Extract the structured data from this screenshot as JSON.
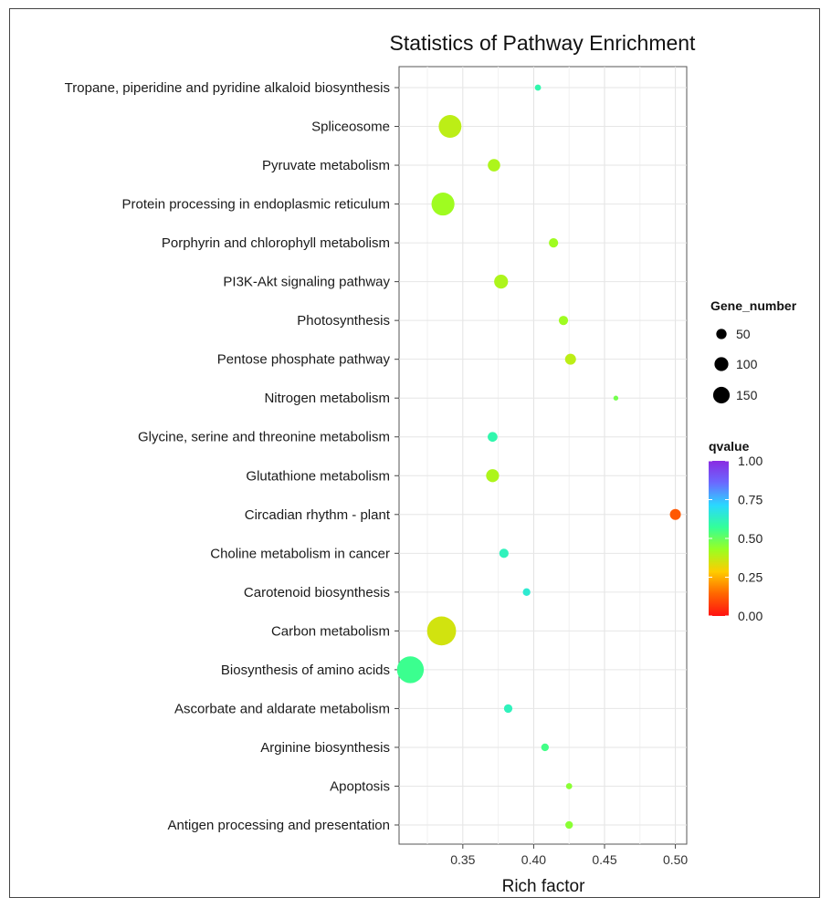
{
  "chart_data": {
    "type": "scatter",
    "title": "Statistics of Pathway Enrichment",
    "xlabel": "Rich factor",
    "ylabel": "",
    "xlim": [
      0.305,
      0.508
    ],
    "xticks": [
      0.35,
      0.4,
      0.45,
      0.5
    ],
    "xtick_labels": [
      "0.35",
      "0.40",
      "0.45",
      "0.50"
    ],
    "grid": true,
    "categories": [
      "Tropane, piperidine and pyridine alkaloid biosynthesis",
      "Spliceosome",
      "Pyruvate metabolism",
      "Protein processing in endoplasmic reticulum",
      "Porphyrin and chlorophyll metabolism",
      "PI3K-Akt signaling pathway",
      "Photosynthesis",
      "Pentose phosphate pathway",
      "Nitrogen metabolism",
      "Glycine, serine and threonine metabolism",
      "Glutathione metabolism",
      "Circadian rhythm - plant",
      "Choline metabolism in cancer",
      "Carotenoid biosynthesis",
      "Carbon metabolism",
      "Biosynthesis of amino acids",
      "Ascorbate and aldarate metabolism",
      "Arginine biosynthesis",
      "Apoptosis",
      "Antigen processing and presentation"
    ],
    "points": [
      {
        "rich_factor": 0.403,
        "gene_number": 8,
        "qvalue": 0.6
      },
      {
        "rich_factor": 0.341,
        "gene_number": 108,
        "qvalue": 0.38
      },
      {
        "rich_factor": 0.372,
        "gene_number": 32,
        "qvalue": 0.4
      },
      {
        "rich_factor": 0.336,
        "gene_number": 110,
        "qvalue": 0.42
      },
      {
        "rich_factor": 0.414,
        "gene_number": 18,
        "qvalue": 0.42
      },
      {
        "rich_factor": 0.377,
        "gene_number": 40,
        "qvalue": 0.4
      },
      {
        "rich_factor": 0.421,
        "gene_number": 18,
        "qvalue": 0.42
      },
      {
        "rich_factor": 0.426,
        "gene_number": 25,
        "qvalue": 0.38
      },
      {
        "rich_factor": 0.458,
        "gene_number": 5,
        "qvalue": 0.48
      },
      {
        "rich_factor": 0.371,
        "gene_number": 20,
        "qvalue": 0.6
      },
      {
        "rich_factor": 0.371,
        "gene_number": 35,
        "qvalue": 0.4
      },
      {
        "rich_factor": 0.5,
        "gene_number": 25,
        "qvalue": 0.12
      },
      {
        "rich_factor": 0.379,
        "gene_number": 18,
        "qvalue": 0.62
      },
      {
        "rich_factor": 0.395,
        "gene_number": 12,
        "qvalue": 0.65
      },
      {
        "rich_factor": 0.335,
        "gene_number": 175,
        "qvalue": 0.35
      },
      {
        "rich_factor": 0.313,
        "gene_number": 150,
        "qvalue": 0.56
      },
      {
        "rich_factor": 0.382,
        "gene_number": 15,
        "qvalue": 0.62
      },
      {
        "rich_factor": 0.408,
        "gene_number": 12,
        "qvalue": 0.55
      },
      {
        "rich_factor": 0.425,
        "gene_number": 8,
        "qvalue": 0.45
      },
      {
        "rich_factor": 0.425,
        "gene_number": 12,
        "qvalue": 0.45
      }
    ],
    "legend_size": {
      "title": "Gene_number",
      "values": [
        50,
        100,
        150
      ],
      "labels": [
        "50",
        "100",
        "150"
      ]
    },
    "legend_color": {
      "title": "qvalue",
      "range": [
        0,
        1
      ],
      "ticks": [
        1.0,
        0.75,
        0.5,
        0.25,
        0.0
      ],
      "tick_labels": [
        "1.00",
        "0.75",
        "0.50",
        "0.25",
        "0.00"
      ],
      "gradient_top_to_bottom": [
        "#8a2be2",
        "#6a6aff",
        "#2ad8ff",
        "#33ff99",
        "#99ff22",
        "#ffcc00",
        "#ff6600",
        "#ff1111"
      ]
    },
    "legend_placement": "right",
    "point_color_note": "colors mapped from qvalue"
  }
}
